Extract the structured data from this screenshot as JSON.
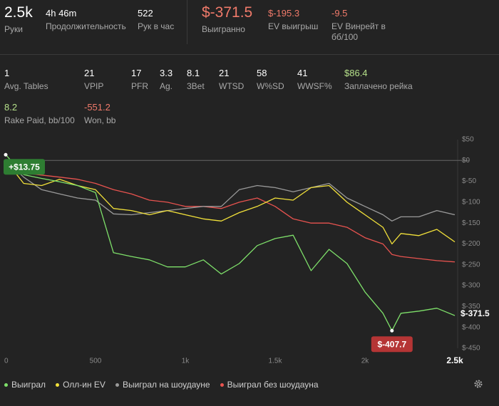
{
  "header": {
    "stats": [
      {
        "value": "2.5k",
        "label": "Руки"
      },
      {
        "value": "4h 46m",
        "label": "Продолжительность"
      },
      {
        "value": "522",
        "label": "Рук в час"
      },
      {
        "value": "$-371.5",
        "label": "Выигранно"
      },
      {
        "value": "$-195.3",
        "label": "EV выигрыш"
      },
      {
        "value": "-9.5",
        "label": "EV Винрейт в бб/100"
      }
    ]
  },
  "details": {
    "stats": [
      {
        "value": "1",
        "label": "Avg. Tables"
      },
      {
        "value": "21",
        "label": "VPIP"
      },
      {
        "value": "17",
        "label": "PFR"
      },
      {
        "value": "3.3",
        "label": "Ag."
      },
      {
        "value": "8.1",
        "label": "3Bet"
      },
      {
        "value": "21",
        "label": "WTSD"
      },
      {
        "value": "58",
        "label": "W%SD"
      },
      {
        "value": "41",
        "label": "WWSF%"
      },
      {
        "value": "$86.4",
        "label": "Заплачено рейка"
      },
      {
        "value": "8.2",
        "label": "Rake Paid, bb/100"
      },
      {
        "value": "-551.2",
        "label": "Won, bb"
      }
    ]
  },
  "chart": {
    "type": "line",
    "x": [
      0,
      100,
      200,
      300,
      400,
      500,
      600,
      700,
      800,
      900,
      1000,
      1100,
      1200,
      1300,
      1400,
      1500,
      1600,
      1700,
      1800,
      1900,
      2000,
      2100,
      2150,
      2200,
      2300,
      2400,
      2500
    ],
    "series": [
      {
        "name": "Выиграл",
        "color": "#7ee06a",
        "values": [
          13.75,
          -34,
          -43,
          -51,
          -60,
          -77,
          -221,
          -230,
          -238,
          -255,
          -255,
          -238,
          -272,
          -247,
          -204,
          -187,
          -179,
          -264,
          -213,
          -247,
          -315,
          -366,
          -407.7,
          -366,
          -361,
          -354,
          -371.5
        ]
      },
      {
        "name": "Олл-ин EV",
        "color": "#f2e13a",
        "values": [
          0,
          -55,
          -60,
          -45,
          -60,
          -70,
          -115,
          -120,
          -130,
          -120,
          -130,
          -140,
          -145,
          -125,
          -110,
          -90,
          -95,
          -65,
          -60,
          -100,
          -130,
          -160,
          -200,
          -175,
          -180,
          -165,
          -195
        ]
      },
      {
        "name": "Выиграл на шоудауне",
        "color": "#9a9a9a",
        "values": [
          0,
          -40,
          -70,
          -80,
          -90,
          -95,
          -128,
          -130,
          -125,
          -120,
          -115,
          -110,
          -110,
          -70,
          -60,
          -65,
          -75,
          -65,
          -55,
          -90,
          -110,
          -130,
          -145,
          -135,
          -135,
          -120,
          -130
        ]
      },
      {
        "name": "Выиграл без шоудауна",
        "color": "#e8534f",
        "values": [
          0,
          -30,
          -35,
          -40,
          -45,
          -55,
          -70,
          -80,
          -95,
          -100,
          -110,
          -110,
          -115,
          -100,
          -90,
          -110,
          -140,
          -150,
          -150,
          -160,
          -185,
          -200,
          -225,
          -230,
          -235,
          -240,
          -243
        ]
      }
    ],
    "xlim": [
      0,
      2500
    ],
    "xticks": [
      0,
      500,
      {
        "value": 1000,
        "label": "1k"
      },
      {
        "value": 1500,
        "label": "1.5k"
      },
      {
        "value": 2000,
        "label": "2k"
      },
      {
        "value": 2500,
        "label": "2.5k"
      }
    ],
    "ylim": [
      -450,
      50
    ],
    "yticks": [
      {
        "value": 50,
        "label": "$50"
      },
      {
        "value": 0,
        "label": "$0"
      },
      {
        "value": -50,
        "label": "$-50"
      },
      {
        "value": -100,
        "label": "$-100"
      },
      {
        "value": -150,
        "label": "$-150"
      },
      {
        "value": -200,
        "label": "$-200"
      },
      {
        "value": -250,
        "label": "$-250"
      },
      {
        "value": -300,
        "label": "$-300"
      },
      {
        "value": -350,
        "label": "$-350"
      },
      {
        "value": -400,
        "label": "$-400"
      },
      {
        "value": -450,
        "label": "$-450"
      }
    ],
    "annotations": [
      {
        "text": "+$13.75",
        "x": 0,
        "y": 13.75,
        "color": "#2e7d32"
      },
      {
        "text": "$-407.7",
        "x": 2150,
        "y": -407.7,
        "color": "#b53535"
      },
      {
        "text": "$-371.5",
        "x": 2500,
        "y": -371.5
      }
    ]
  }
}
